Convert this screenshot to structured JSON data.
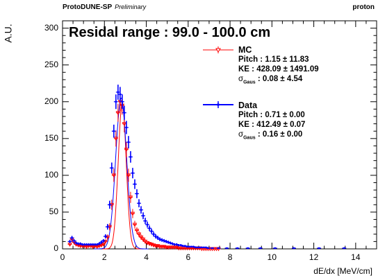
{
  "header": {
    "experiment": "ProtoDUNE-SP",
    "status": "Preliminary",
    "particle": "proton"
  },
  "chart_data": {
    "type": "scatter",
    "title": "Residal range : 99.0 - 100.0 cm",
    "xlabel": "dE/dx [MeV/cm]",
    "ylabel": "A.U.",
    "xlim": [
      0,
      15
    ],
    "ylim": [
      0,
      310
    ],
    "x_ticks": [
      "0",
      "2",
      "4",
      "6",
      "8",
      "10",
      "12",
      "14"
    ],
    "y_ticks": [
      "0",
      "50",
      "100",
      "150",
      "200",
      "250",
      "300"
    ],
    "grid": false,
    "legend_position": "top-right",
    "colors": {
      "mc": "#ff0000",
      "data": "#0000ff"
    },
    "series": [
      {
        "name": "MC",
        "stats": {
          "pitch": "Pitch : 1.15 ± 11.83",
          "ke": "KE : 428.09 ± 1491.09",
          "sigma": "σGaus : 0.08 ± 4.54"
        },
        "sigma_sym": "σ",
        "sigma_sub": "Gaus",
        "sigma_val": " : 0.08 ± 4.54",
        "x": [
          0.35,
          0.45,
          0.55,
          0.65,
          0.75,
          0.85,
          0.95,
          1.05,
          1.15,
          1.25,
          1.35,
          1.45,
          1.55,
          1.65,
          1.75,
          1.85,
          1.95,
          2.05,
          2.15,
          2.25,
          2.35,
          2.45,
          2.55,
          2.65,
          2.75,
          2.85,
          2.95,
          3.05,
          3.15,
          3.25,
          3.35,
          3.45,
          3.55,
          3.65,
          3.75,
          3.85,
          3.95,
          4.05,
          4.15,
          4.25,
          4.35,
          4.45,
          4.55,
          4.65,
          4.75,
          4.85,
          4.95,
          5.05,
          5.15,
          5.25,
          5.35,
          5.45,
          5.55,
          5.65,
          5.75,
          5.85,
          5.95,
          6.05,
          6.15,
          6.25,
          6.35,
          6.45,
          6.55,
          6.65,
          6.75,
          6.85,
          6.95,
          7.05,
          7.15,
          7.25,
          7.35,
          7.45
        ],
        "y": [
          6,
          13,
          9,
          6,
          5,
          4,
          4,
          4,
          3,
          4,
          4,
          3,
          4,
          3,
          4,
          5,
          6,
          10,
          16,
          30,
          60,
          100,
          150,
          185,
          200,
          195,
          170,
          135,
          100,
          70,
          48,
          33,
          25,
          20,
          16,
          13,
          10,
          8,
          7,
          6,
          5,
          4,
          4,
          3,
          3,
          3,
          2,
          2,
          2,
          2,
          2,
          2,
          1,
          1,
          1,
          1,
          1,
          1,
          1,
          1,
          1,
          1,
          1,
          0,
          0,
          0,
          0,
          0,
          0,
          0,
          0,
          0
        ]
      },
      {
        "name": "Data",
        "stats": {
          "pitch": "Pitch : 0.71 ± 0.00",
          "ke": "KE : 412.49 ± 0.07",
          "sigma": "σGaus : 0.16 ± 0.00"
        },
        "sigma_sym": "σ",
        "sigma_sub": "Gaus",
        "sigma_val": " : 0.16 ± 0.00",
        "x": [
          0.35,
          0.45,
          0.55,
          0.65,
          0.75,
          0.85,
          0.95,
          1.05,
          1.15,
          1.25,
          1.35,
          1.45,
          1.55,
          1.65,
          1.75,
          1.85,
          1.95,
          2.05,
          2.15,
          2.25,
          2.35,
          2.45,
          2.55,
          2.65,
          2.75,
          2.85,
          2.95,
          3.05,
          3.15,
          3.25,
          3.35,
          3.45,
          3.55,
          3.65,
          3.75,
          3.85,
          3.95,
          4.05,
          4.15,
          4.25,
          4.35,
          4.45,
          4.55,
          4.65,
          4.75,
          4.85,
          4.95,
          5.05,
          5.15,
          5.25,
          5.35,
          5.45,
          5.55,
          5.65,
          5.75,
          5.85,
          5.95,
          6.05,
          6.15,
          6.25,
          6.35,
          6.45,
          6.55,
          6.65,
          6.75,
          6.85,
          6.95,
          7.15,
          7.45,
          7.85,
          8.35,
          8.85,
          9.45,
          10.15,
          11.05,
          12.25,
          13.45
        ],
        "y": [
          10,
          15,
          11,
          8,
          7,
          7,
          6,
          6,
          6,
          6,
          6,
          6,
          6,
          6,
          7,
          9,
          11,
          17,
          30,
          60,
          110,
          160,
          200,
          213,
          210,
          200,
          185,
          165,
          145,
          125,
          103,
          88,
          75,
          62,
          53,
          45,
          38,
          33,
          28,
          24,
          20,
          17,
          15,
          13,
          12,
          11,
          10,
          9,
          8,
          7,
          6,
          6,
          5,
          5,
          4,
          4,
          3,
          3,
          3,
          3,
          2,
          2,
          2,
          2,
          2,
          2,
          1,
          1,
          1,
          1,
          1,
          1,
          1,
          1,
          1,
          1,
          1
        ]
      }
    ],
    "mc_fit": {
      "mean": 2.85,
      "sigma": 0.19,
      "amp": 198
    },
    "data_fit": {
      "mean": 2.8,
      "sigma": 0.26,
      "amp": 205
    }
  }
}
